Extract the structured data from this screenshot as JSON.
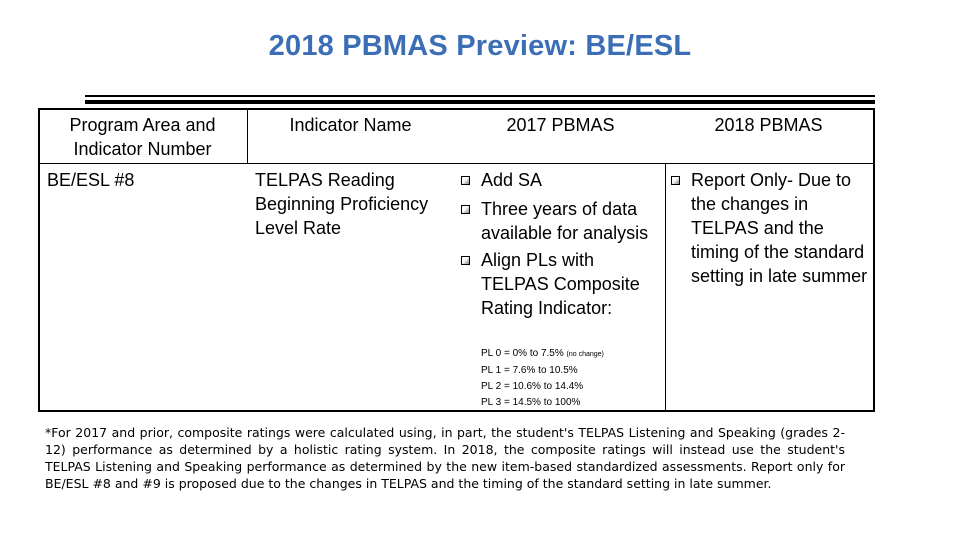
{
  "header": {
    "title": "2018 PBMAS Preview: BE/ESL"
  },
  "table": {
    "columns": [
      "Program Area and Indicator Number",
      "Indicator Name",
      "2017 PBMAS",
      "2018 PBMAS"
    ],
    "rows": [
      {
        "indicator_number": "BE/ESL #8",
        "indicator_name": "TELPAS Reading Beginning Proficiency Level Rate",
        "pbmas_2017": [
          "Add SA",
          "Three years of data available for analysis",
          "Align PLs with TELPAS Composite Rating Indicator:"
        ],
        "performance_levels": [
          {
            "text": "PL 0 = 0% to 7.5%",
            "note": "(no change)"
          },
          {
            "text": "PL 1 = 7.6% to 10.5%"
          },
          {
            "text": "PL 2 = 10.6% to 14.4%"
          },
          {
            "text": "PL 3 = 14.5% to 100%"
          }
        ],
        "pbmas_2018": [
          "Report Only- Due to the changes in TELPAS and the timing of the standard setting in late summer"
        ]
      }
    ]
  },
  "footnote": "*For 2017 and prior, composite ratings were calculated using, in part, the student's TELPAS Listening and Speaking (grades 2-12) performance as determined by a holistic rating system. In 2018, the composite ratings will instead use the student's TELPAS Listening and Speaking performance as determined by the new item-based standardized assessments. Report only for BE/ESL #8 and #9 is proposed due to the changes in TELPAS and the timing of the standard setting in late summer."
}
